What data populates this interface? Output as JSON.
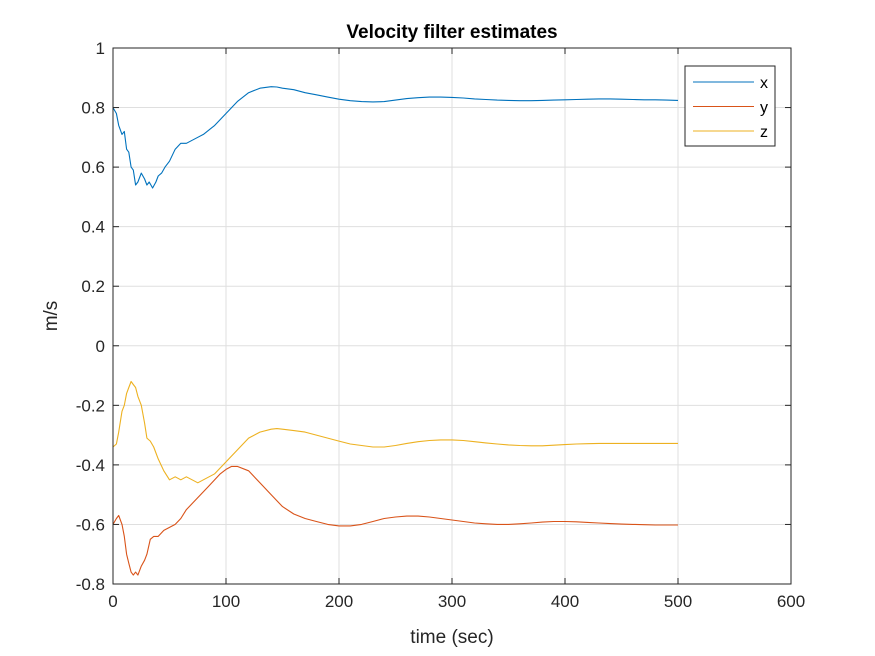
{
  "chart_data": {
    "type": "line",
    "title": "Velocity filter estimates",
    "xlabel": "time (sec)",
    "ylabel": "m/s",
    "xlim": [
      0,
      600
    ],
    "ylim": [
      -0.8,
      1
    ],
    "xticks": [
      0,
      100,
      200,
      300,
      400,
      500,
      600
    ],
    "yticks": [
      -0.8,
      -0.6,
      -0.4,
      -0.2,
      0,
      0.2,
      0.4,
      0.6,
      0.8,
      1
    ],
    "xtick_labels": [
      "0",
      "100",
      "200",
      "300",
      "400",
      "500",
      "600"
    ],
    "ytick_labels": [
      "-0.8",
      "-0.6",
      "-0.4",
      "-0.2",
      "0",
      "0.2",
      "0.4",
      "0.6",
      "0.8",
      "1"
    ],
    "grid": true,
    "legend_position": "top-right",
    "series": [
      {
        "name": "x",
        "color": "#0072BD",
        "x": [
          0,
          3,
          5,
          8,
          10,
          12,
          14,
          16,
          18,
          20,
          22,
          25,
          28,
          30,
          32,
          35,
          38,
          40,
          43,
          46,
          50,
          55,
          60,
          65,
          70,
          75,
          80,
          90,
          100,
          110,
          120,
          130,
          140,
          145,
          150,
          160,
          170,
          180,
          190,
          200,
          210,
          220,
          230,
          240,
          250,
          260,
          270,
          280,
          290,
          300,
          310,
          320,
          330,
          340,
          350,
          360,
          370,
          380,
          390,
          400,
          410,
          420,
          430,
          440,
          450,
          460,
          470,
          480,
          490,
          500
        ],
        "y": [
          0.8,
          0.78,
          0.74,
          0.71,
          0.72,
          0.66,
          0.65,
          0.6,
          0.59,
          0.54,
          0.55,
          0.58,
          0.56,
          0.54,
          0.55,
          0.53,
          0.55,
          0.57,
          0.58,
          0.6,
          0.62,
          0.66,
          0.68,
          0.68,
          0.69,
          0.7,
          0.71,
          0.74,
          0.78,
          0.82,
          0.85,
          0.865,
          0.87,
          0.869,
          0.865,
          0.86,
          0.85,
          0.843,
          0.835,
          0.828,
          0.823,
          0.82,
          0.819,
          0.82,
          0.825,
          0.83,
          0.833,
          0.835,
          0.835,
          0.834,
          0.832,
          0.829,
          0.827,
          0.825,
          0.824,
          0.823,
          0.823,
          0.824,
          0.825,
          0.826,
          0.827,
          0.828,
          0.829,
          0.829,
          0.828,
          0.827,
          0.826,
          0.826,
          0.825,
          0.824
        ]
      },
      {
        "name": "y",
        "color": "#D95319",
        "x": [
          0,
          3,
          5,
          8,
          10,
          12,
          14,
          16,
          18,
          20,
          22,
          25,
          28,
          30,
          33,
          36,
          40,
          45,
          50,
          55,
          60,
          65,
          70,
          75,
          80,
          85,
          90,
          95,
          100,
          105,
          110,
          120,
          130,
          140,
          150,
          160,
          170,
          180,
          190,
          200,
          210,
          220,
          230,
          240,
          250,
          260,
          270,
          280,
          290,
          300,
          310,
          320,
          330,
          340,
          350,
          360,
          370,
          380,
          390,
          400,
          410,
          420,
          430,
          440,
          450,
          460,
          470,
          480,
          490,
          500
        ],
        "y": [
          -0.6,
          -0.58,
          -0.57,
          -0.6,
          -0.64,
          -0.7,
          -0.73,
          -0.76,
          -0.77,
          -0.76,
          -0.77,
          -0.74,
          -0.72,
          -0.7,
          -0.65,
          -0.64,
          -0.64,
          -0.62,
          -0.61,
          -0.6,
          -0.58,
          -0.55,
          -0.53,
          -0.51,
          -0.49,
          -0.47,
          -0.45,
          -0.43,
          -0.415,
          -0.405,
          -0.405,
          -0.42,
          -0.46,
          -0.5,
          -0.54,
          -0.565,
          -0.58,
          -0.59,
          -0.6,
          -0.605,
          -0.605,
          -0.6,
          -0.59,
          -0.58,
          -0.575,
          -0.572,
          -0.572,
          -0.575,
          -0.58,
          -0.585,
          -0.59,
          -0.595,
          -0.598,
          -0.6,
          -0.6,
          -0.598,
          -0.595,
          -0.592,
          -0.59,
          -0.59,
          -0.591,
          -0.593,
          -0.595,
          -0.597,
          -0.599,
          -0.6,
          -0.601,
          -0.602,
          -0.602,
          -0.602
        ]
      },
      {
        "name": "z",
        "color": "#EDB120",
        "x": [
          0,
          3,
          5,
          8,
          10,
          12,
          14,
          16,
          18,
          20,
          22,
          25,
          28,
          30,
          33,
          36,
          40,
          45,
          50,
          55,
          60,
          65,
          70,
          75,
          80,
          90,
          100,
          110,
          120,
          130,
          140,
          145,
          150,
          160,
          170,
          180,
          190,
          200,
          210,
          220,
          230,
          240,
          250,
          260,
          270,
          280,
          290,
          300,
          310,
          320,
          330,
          340,
          350,
          360,
          370,
          380,
          390,
          400,
          410,
          420,
          430,
          440,
          450,
          460,
          470,
          480,
          490,
          500
        ],
        "y": [
          -0.34,
          -0.33,
          -0.29,
          -0.22,
          -0.2,
          -0.16,
          -0.14,
          -0.12,
          -0.13,
          -0.14,
          -0.17,
          -0.2,
          -0.26,
          -0.31,
          -0.32,
          -0.34,
          -0.38,
          -0.42,
          -0.45,
          -0.44,
          -0.45,
          -0.44,
          -0.45,
          -0.46,
          -0.45,
          -0.43,
          -0.39,
          -0.35,
          -0.31,
          -0.29,
          -0.28,
          -0.278,
          -0.28,
          -0.285,
          -0.29,
          -0.3,
          -0.31,
          -0.32,
          -0.33,
          -0.335,
          -0.34,
          -0.34,
          -0.335,
          -0.328,
          -0.322,
          -0.318,
          -0.316,
          -0.316,
          -0.318,
          -0.322,
          -0.326,
          -0.33,
          -0.333,
          -0.335,
          -0.336,
          -0.336,
          -0.334,
          -0.332,
          -0.33,
          -0.329,
          -0.328,
          -0.328,
          -0.328,
          -0.328,
          -0.328,
          -0.328,
          -0.328,
          -0.328
        ]
      }
    ]
  }
}
